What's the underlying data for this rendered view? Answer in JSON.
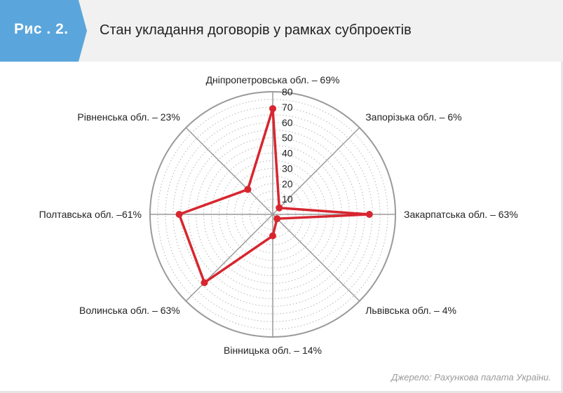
{
  "figure": {
    "label": "Рис . 2.",
    "title": "Стан укладання договорів у рамках субпроектів",
    "source": "Джерело: Рахункова палата України."
  },
  "colors": {
    "accent": "#5aa6dc",
    "series": "#d7262f",
    "grid": "#9a9a9a",
    "header_bg": "#f1f1f1"
  },
  "chart_data": {
    "type": "radar",
    "axis_min": 0,
    "axis_max": 80,
    "ticks": [
      "10",
      "20",
      "30",
      "40",
      "50",
      "60",
      "70",
      "80"
    ],
    "tick_values": [
      10,
      20,
      30,
      40,
      50,
      60,
      70,
      80
    ],
    "grid": true,
    "categories": [
      "Дніпропетровська обл. – 69%",
      "Запорізька обл. – 6%",
      "Закарпатська обл. – 63%",
      "Львівська обл. – 4%",
      "Вінницька обл. – 14%",
      "Волинська обл. – 63%",
      "Полтавська обл. –61%",
      "Рівненська обл. – 23%"
    ],
    "series": [
      {
        "values": [
          69,
          6,
          63,
          4,
          14,
          63,
          61,
          23
        ]
      }
    ]
  }
}
